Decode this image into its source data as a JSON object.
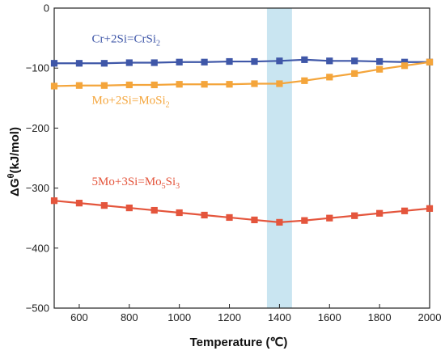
{
  "chart_data": {
    "type": "line",
    "title": "",
    "xlabel": "Temperature (℃)",
    "ylabel_main": "ΔG",
    "ylabel_sup": "θ",
    "ylabel_rest": "(kJ/mol)",
    "xlim": [
      500,
      2000
    ],
    "ylim": [
      -500,
      0
    ],
    "xticks": [
      600,
      800,
      1000,
      1200,
      1400,
      1600,
      1800,
      2000
    ],
    "yticks": [
      0,
      -100,
      -200,
      -300,
      -400,
      -500
    ],
    "highlight_band": {
      "x0": 1350,
      "x1": 1450,
      "color": "#bfe0ee"
    },
    "series": [
      {
        "label_parts": [
          {
            "t": "Cr+2Si=CrSi",
            "sub": false
          },
          {
            "t": "2",
            "sub": true
          }
        ],
        "label_anchor": [
          560,
          -57
        ],
        "color": "#3f57a8",
        "marker": "square",
        "x": [
          500,
          600,
          700,
          800,
          900,
          1000,
          1100,
          1200,
          1300,
          1400,
          1500,
          1600,
          1700,
          1800,
          1900,
          2000
        ],
        "y": [
          -92,
          -92,
          -92,
          -91,
          -91,
          -90,
          -90,
          -89,
          -89,
          -88,
          -86,
          -88,
          -88,
          -89,
          -90,
          -90
        ]
      },
      {
        "label_parts": [
          {
            "t": "Mo+2Si=MoSi",
            "sub": false
          },
          {
            "t": "2",
            "sub": true
          }
        ],
        "label_anchor": [
          560,
          -160
        ],
        "color": "#f4a53b",
        "marker": "square",
        "x": [
          500,
          600,
          700,
          800,
          900,
          1000,
          1100,
          1200,
          1300,
          1400,
          1500,
          1600,
          1700,
          1800,
          1900,
          2000
        ],
        "y": [
          -130,
          -129,
          -129,
          -128,
          -128,
          -127,
          -127,
          -127,
          -126,
          -126,
          -121,
          -115,
          -109,
          -102,
          -96,
          -90
        ]
      },
      {
        "label_parts": [
          {
            "t": "5Mo+3Si=Mo",
            "sub": false
          },
          {
            "t": "5",
            "sub": true
          },
          {
            "t": "Si",
            "sub": false
          },
          {
            "t": "3",
            "sub": true
          }
        ],
        "label_anchor": [
          560,
          -295
        ],
        "color": "#e4553c",
        "marker": "square",
        "x": [
          500,
          600,
          700,
          800,
          900,
          1000,
          1100,
          1200,
          1300,
          1400,
          1500,
          1600,
          1700,
          1800,
          1900,
          2000
        ],
        "y": [
          -321,
          -325,
          -329,
          -333,
          -337,
          -341,
          -345,
          -349,
          -353,
          -357,
          -354,
          -350,
          -346,
          -342,
          -338,
          -334
        ]
      }
    ]
  }
}
